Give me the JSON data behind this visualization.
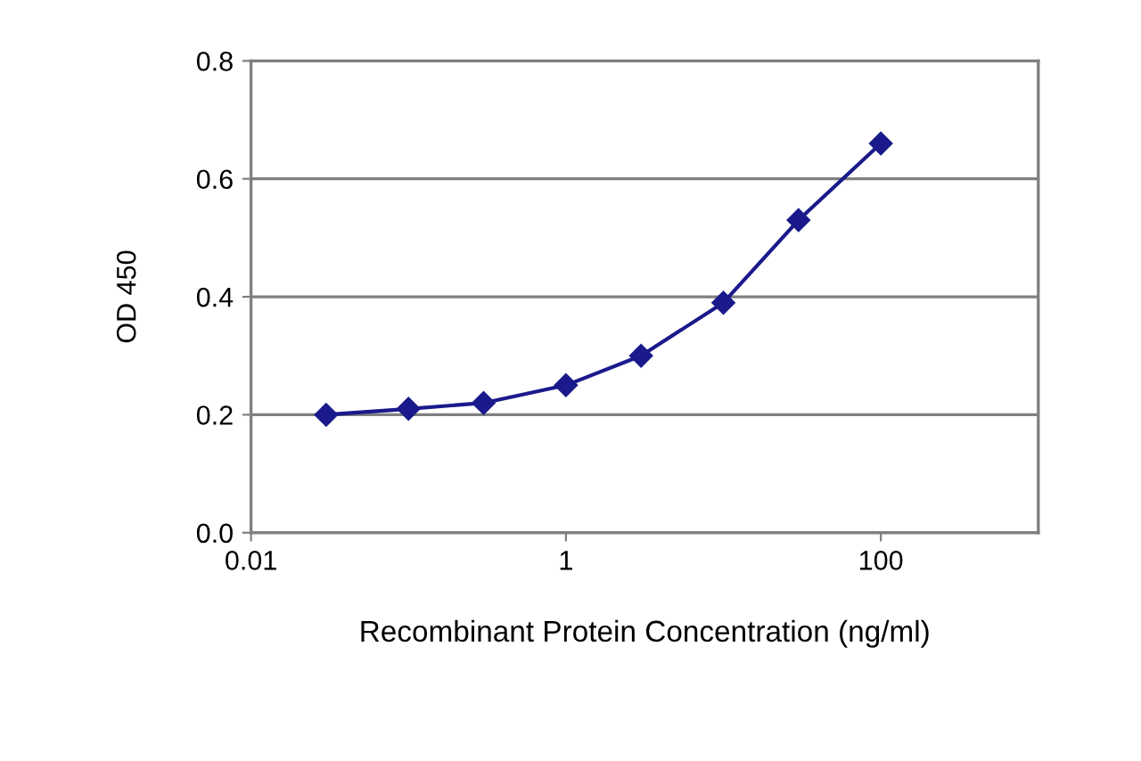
{
  "chart_data": {
    "type": "line",
    "xlabel": "Recombinant Protein Concentration (ng/ml)",
    "ylabel": "OD 450",
    "x": [
      0.03,
      0.1,
      0.3,
      1,
      3,
      10,
      30,
      100
    ],
    "series": [
      {
        "color": "#1a1a8c",
        "values": [
          0.2,
          0.21,
          0.22,
          0.25,
          0.3,
          0.39,
          0.53,
          0.66
        ]
      }
    ],
    "log": "x",
    "xlim": [
      0.01,
      1000
    ],
    "xticks": [
      0.01,
      1,
      100
    ],
    "ylim": [
      0,
      0.8
    ],
    "yticks": [
      {
        "value": 0,
        "label": "0.0"
      },
      0.2,
      0.4,
      0.6,
      0.8
    ],
    "grid": "y",
    "marker": "diamond",
    "line_style": "solid",
    "legend": false
  }
}
